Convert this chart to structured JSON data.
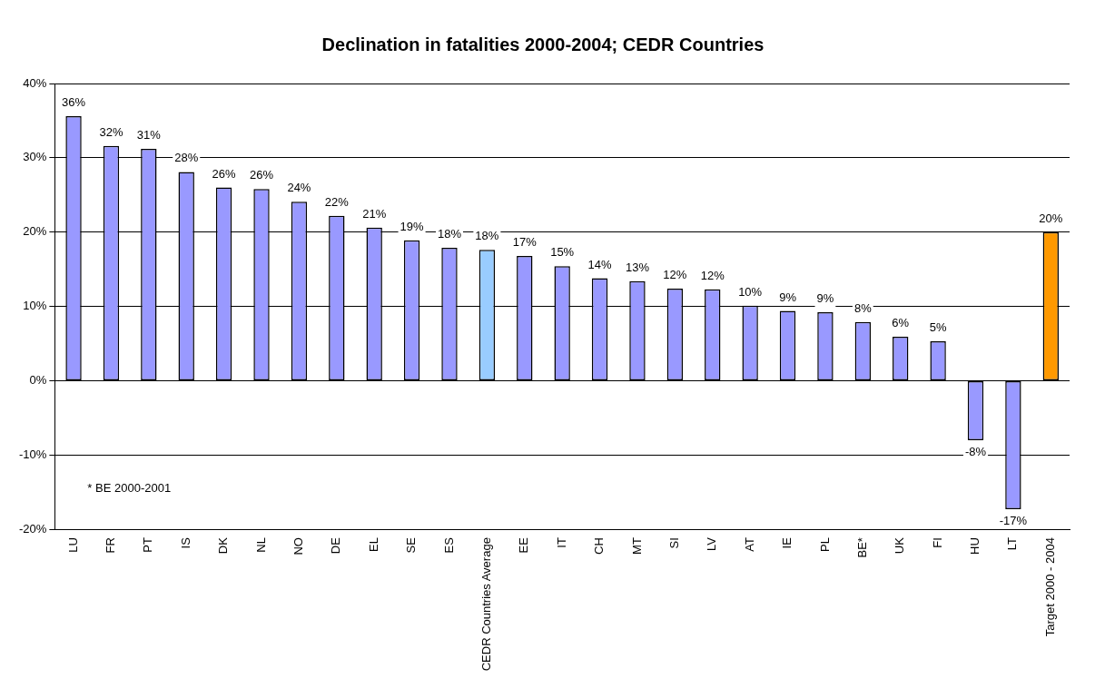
{
  "chart_data": {
    "type": "bar",
    "title": "Declination in fatalities 2000-2004; CEDR Countries",
    "categories": [
      "LU",
      "FR",
      "PT",
      "IS",
      "DK",
      "NL",
      "NO",
      "DE",
      "EL",
      "SE",
      "ES",
      "CEDR Countries Average",
      "EE",
      "IT",
      "CH",
      "MT",
      "SI",
      "LV",
      "AT",
      "IE",
      "PL",
      "BE*",
      "UK",
      "FI",
      "HU",
      "LT",
      "Target 2000 - 2004"
    ],
    "values": [
      35.6,
      31.6,
      31.2,
      28.1,
      26.0,
      25.8,
      24.1,
      22.2,
      20.6,
      18.9,
      17.9,
      17.6,
      16.8,
      15.4,
      13.8,
      13.4,
      12.4,
      12.3,
      10.1,
      9.4,
      9.2,
      7.9,
      5.9,
      5.3,
      -8.0,
      -17.3,
      20.0
    ],
    "value_labels": [
      "36%",
      "32%",
      "31%",
      "28%",
      "26%",
      "26%",
      "24%",
      "22%",
      "21%",
      "19%",
      "18%",
      "18%",
      "17%",
      "15%",
      "14%",
      "13%",
      "12%",
      "12%",
      "10%",
      "9%",
      "9%",
      "8%",
      "6%",
      "5%",
      "-8%",
      "-17%",
      "20%"
    ],
    "colors": [
      "#9999ff",
      "#9999ff",
      "#9999ff",
      "#9999ff",
      "#9999ff",
      "#9999ff",
      "#9999ff",
      "#9999ff",
      "#9999ff",
      "#9999ff",
      "#9999ff",
      "#99ccff",
      "#9999ff",
      "#9999ff",
      "#9999ff",
      "#9999ff",
      "#9999ff",
      "#9999ff",
      "#9999ff",
      "#9999ff",
      "#9999ff",
      "#9999ff",
      "#9999ff",
      "#9999ff",
      "#9999ff",
      "#9999ff",
      "#ff9900"
    ],
    "ylim": [
      -20,
      40
    ],
    "yticks": [
      {
        "value": -20,
        "label": "-20%"
      },
      {
        "value": -10,
        "label": "-10%"
      },
      {
        "value": 0,
        "label": "0%"
      },
      {
        "value": 10,
        "label": "10%"
      },
      {
        "value": 20,
        "label": "20%"
      },
      {
        "value": 30,
        "label": "30%"
      },
      {
        "value": 40,
        "label": "40%"
      }
    ],
    "grid": "y",
    "annotations": [
      "* BE 2000-2001"
    ]
  }
}
